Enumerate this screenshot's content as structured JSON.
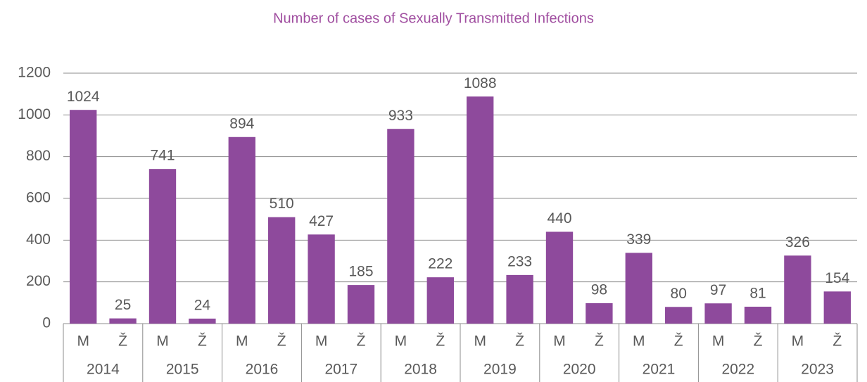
{
  "chart_data": {
    "type": "bar",
    "title": "Number of cases of Sexually Transmitted Infections",
    "categories": [
      "M",
      "Ž",
      "M",
      "Ž",
      "M",
      "Ž",
      "M",
      "Ž",
      "M",
      "Ž",
      "M",
      "Ž",
      "M",
      "Ž",
      "M",
      "Ž",
      "M",
      "Ž",
      "M",
      "Ž"
    ],
    "groups": [
      "2014",
      "2015",
      "2016",
      "2017",
      "2018",
      "2019",
      "2020",
      "2021",
      "2022",
      "2023"
    ],
    "values": [
      1024,
      25,
      741,
      24,
      894,
      510,
      427,
      185,
      933,
      222,
      1088,
      233,
      440,
      98,
      339,
      80,
      97,
      81,
      326,
      154
    ],
    "color": "#8e4a9c",
    "ylim": [
      0,
      1200
    ],
    "yticks": [
      0,
      200,
      400,
      600,
      800,
      1000,
      1200
    ],
    "grid": true
  }
}
